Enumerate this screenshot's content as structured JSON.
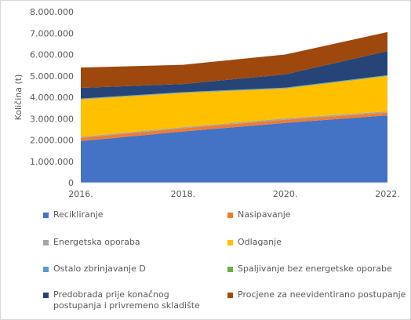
{
  "chart_data": {
    "type": "area",
    "stacked": true,
    "title": "",
    "xlabel": "",
    "ylabel": "Količina (t)",
    "x": [
      "2016.",
      "2018.",
      "2020.",
      "2022."
    ],
    "ylim": [
      0,
      8000000
    ],
    "yticks": [
      0,
      1000000,
      2000000,
      3000000,
      4000000,
      5000000,
      6000000,
      7000000,
      8000000
    ],
    "ytick_labels": [
      "0",
      "1.000.000",
      "2.000.000",
      "3.000.000",
      "4.000.000",
      "5.000.000",
      "6.000.000",
      "7.000.000",
      "8.000.000"
    ],
    "grid": false,
    "legend_position": "bottom",
    "series": [
      {
        "name": "Recikliranje",
        "color": "#4472C4",
        "values": [
          1950000,
          2400000,
          2800000,
          3150000
        ]
      },
      {
        "name": "Nasipavanje",
        "color": "#ED7D31",
        "values": [
          150000,
          150000,
          150000,
          130000
        ]
      },
      {
        "name": "Energetska oporaba",
        "color": "#A5A5A5",
        "values": [
          50000,
          50000,
          60000,
          60000
        ]
      },
      {
        "name": "Odlaganje",
        "color": "#FFC000",
        "values": [
          1750000,
          1600000,
          1400000,
          1650000
        ]
      },
      {
        "name": "Ostalo zbrinjavanje D",
        "color": "#5B9BD5",
        "values": [
          30000,
          30000,
          30000,
          30000
        ]
      },
      {
        "name": "Spaljivanje bez energetske oporabe",
        "color": "#70AD47",
        "values": [
          10000,
          10000,
          10000,
          10000
        ]
      },
      {
        "name": "Predobrada prije konačnog\npostupanja i privremeno skladište",
        "color": "#264478",
        "values": [
          500000,
          380000,
          620000,
          1130000
        ]
      },
      {
        "name": "Procjene za neevidentirano postupanje",
        "color": "#9E480E",
        "values": [
          950000,
          900000,
          930000,
          890000
        ]
      }
    ]
  }
}
